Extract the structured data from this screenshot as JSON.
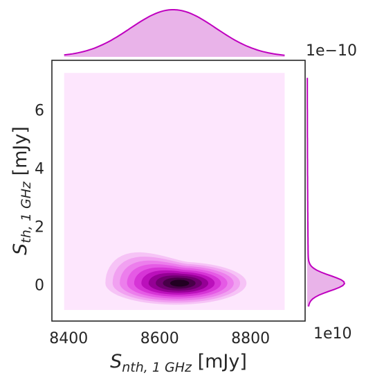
{
  "chart_data": {
    "type": "jointplot-kde",
    "xlabel": {
      "main": "S",
      "sub": "nth, 1 GHz",
      "unit": " [mJy]"
    },
    "ylabel": {
      "main": "S",
      "sub": "th, 1 GHz",
      "unit": " [mJy]"
    },
    "x_ticks": [
      "8400",
      "8600",
      "8800"
    ],
    "x_tick_values": [
      8400,
      8600,
      8800
    ],
    "y_ticks": [
      "0",
      "2",
      "4",
      "6"
    ],
    "y_tick_values": [
      0,
      2,
      4,
      6
    ],
    "xlim": [
      8363,
      8920
    ],
    "ylim": [
      -1.25,
      7.7
    ],
    "x_offset_text": "1e10",
    "y_offset_text": "1e−10",
    "kde_peak": {
      "x": 8645,
      "y": 0.05
    },
    "x_marginal_range": [
      8390,
      8875
    ],
    "y_marginal_range": [
      -0.75,
      7.1
    ],
    "color": "#bf00bf",
    "fill_color": "#e9b3e9",
    "joint_background": "#fde6fd",
    "contour_colors": [
      "#fde6fd",
      "#f6c3f6",
      "#f1a1f1",
      "#ec7eec",
      "#e55ae5",
      "#d634d6",
      "#bb10bb",
      "#950095",
      "#6f006f",
      "#480048",
      "#220022"
    ],
    "grid": false
  }
}
